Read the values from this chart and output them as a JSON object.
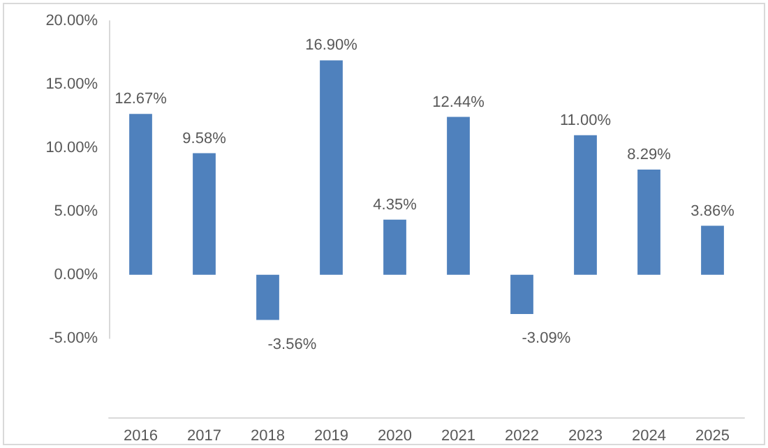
{
  "chart_data": {
    "type": "bar",
    "categories": [
      "2016",
      "2017",
      "2018",
      "2019",
      "2020",
      "2021",
      "2022",
      "2023",
      "2024",
      "2025"
    ],
    "values": [
      12.67,
      9.58,
      -3.56,
      16.9,
      4.35,
      12.44,
      -3.09,
      11.0,
      8.29,
      3.86
    ],
    "value_labels": [
      "12.67%",
      "9.58%",
      "-3.56%",
      "16.90%",
      "4.35%",
      "12.44%",
      "-3.09%",
      "11.00%",
      "8.29%",
      "3.86%"
    ],
    "color": "#4f81bd",
    "ylim": [
      -5,
      20
    ],
    "yticks": [
      {
        "value": -5,
        "label": "-5.00%"
      },
      {
        "value": 0,
        "label": "0.00%"
      },
      {
        "value": 5,
        "label": "5.00%"
      },
      {
        "value": 10,
        "label": "10.00%"
      },
      {
        "value": 15,
        "label": "15.00%"
      },
      {
        "value": 20,
        "label": "20.00%"
      }
    ],
    "grid": false
  }
}
